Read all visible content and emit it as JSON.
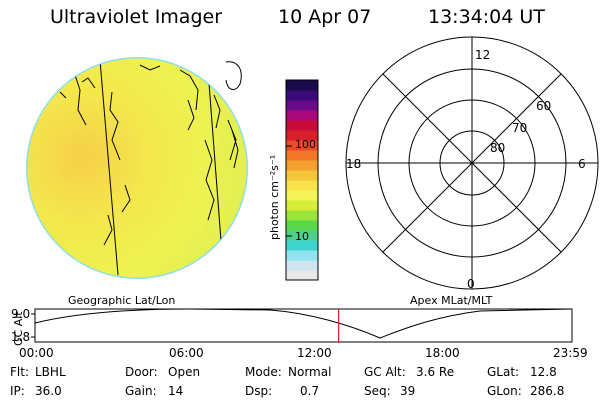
{
  "header": {
    "instrument": "Ultraviolet Imager",
    "date": "10 Apr 07",
    "time": "13:34:04 UT"
  },
  "colorbar": {
    "unit_label": "photon cm⁻²s⁻¹",
    "ticks": [
      "100",
      "10"
    ],
    "colors": [
      "#e8e8e8",
      "#cfe6f2",
      "#8fe4ef",
      "#3fd4cf",
      "#4ecf8a",
      "#58d84a",
      "#9ae43a",
      "#d6ee3a",
      "#f4f45a",
      "#f8e24a",
      "#f6c63a",
      "#f4a030",
      "#f07828",
      "#e84a2a",
      "#d8202a",
      "#c80a3a",
      "#a8087a",
      "#6a0a8a",
      "#3a0a7a",
      "#1a0a4a"
    ]
  },
  "left_panel": {
    "label": "Geographic Lat/Lon",
    "disk_color": "#eef04a"
  },
  "right_panel": {
    "label": "Apex MLat/MLT",
    "mlt_labels": {
      "top": "12",
      "left": "18",
      "right": "6",
      "bottom": "0"
    },
    "lat_labels": [
      "60",
      "70",
      "80"
    ]
  },
  "timeline": {
    "y_axis_label": "GC Alt",
    "y_ticks": [
      "9.0",
      "1.8"
    ],
    "x_ticks": [
      "00:00",
      "06:00",
      "12:00",
      "18:00",
      "23:59"
    ],
    "current_time_fraction": 0.5654,
    "marker_color": "#e02020"
  },
  "status": {
    "flt_label": "Flt:",
    "flt_value": "LBHL",
    "ip_label": "IP:",
    "ip_value": "36.0",
    "door_label": "Door:",
    "door_value": "Open",
    "gain_label": "Gain:",
    "gain_value": "14",
    "mode_label": "Mode:",
    "mode_value": "Normal",
    "dsp_label": "Dsp:",
    "dsp_value": "0.7",
    "gcalt_label": "GC Alt:",
    "gcalt_value": "3.6 Re",
    "seq_label": "Seq:",
    "seq_value": "39",
    "glat_label": "GLat:",
    "glat_value": "12.8",
    "glon_label": "GLon:",
    "glon_value": "286.8"
  }
}
